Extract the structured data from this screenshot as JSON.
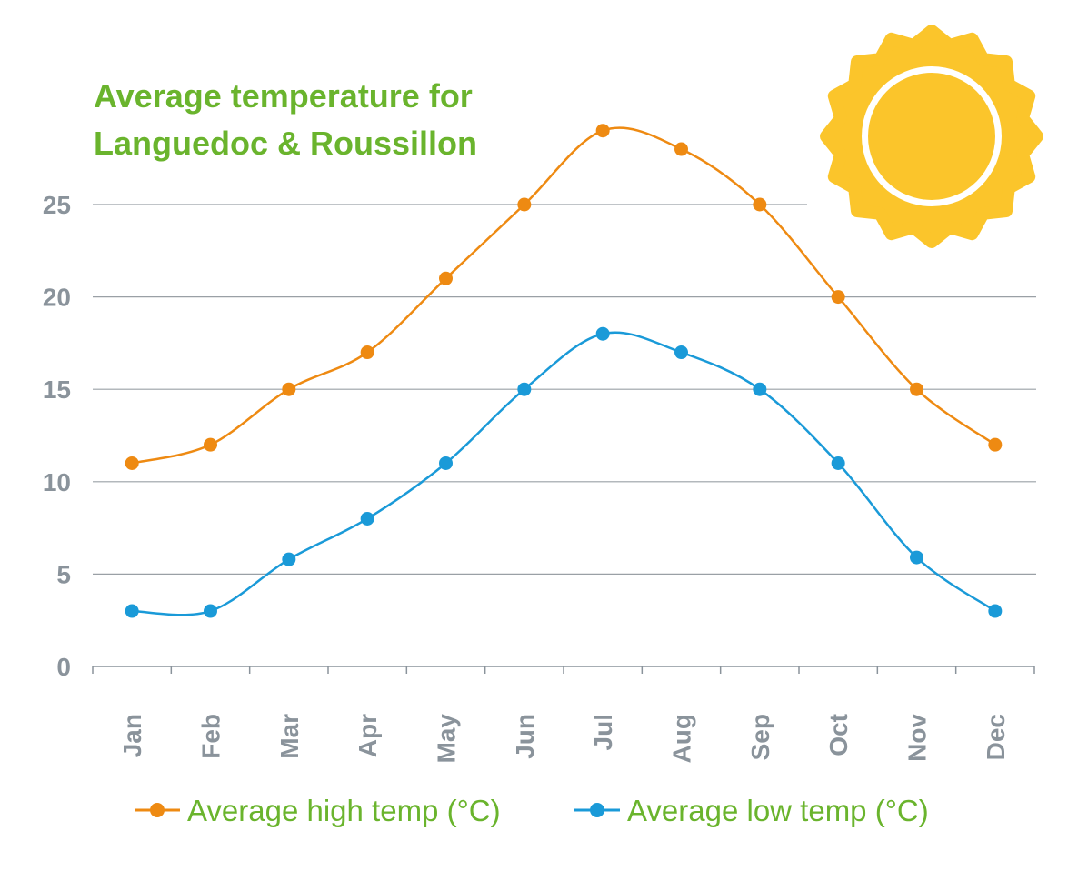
{
  "chart_data": {
    "type": "line",
    "title": "Average temperature for Languedoc & Roussillon",
    "title_lines": [
      "Average temperature for",
      "Languedoc & Roussillon"
    ],
    "categories": [
      "Jan",
      "Feb",
      "Mar",
      "Apr",
      "May",
      "Jun",
      "Jul",
      "Aug",
      "Sep",
      "Oct",
      "Nov",
      "Dec"
    ],
    "series": [
      {
        "name": "Average high temp (°C)",
        "color": "#ee8a12",
        "values": [
          11,
          12,
          15,
          17,
          21,
          25,
          29,
          28,
          25,
          20,
          15,
          12
        ]
      },
      {
        "name": "Average low temp (°C)",
        "color": "#1a9ad8",
        "values": [
          3,
          3,
          5.8,
          8,
          11,
          15,
          18,
          17,
          15,
          11,
          5.9,
          3
        ]
      }
    ],
    "yticks": [
      0,
      5,
      10,
      15,
      20,
      25
    ],
    "ylim": [
      0,
      25
    ],
    "xlabel": "",
    "ylabel": "",
    "grid": true,
    "legend_position": "bottom",
    "title_color": "#6ab42d",
    "axis_text_color": "#8a939b",
    "decoration": "sun-icon",
    "sun_color": "#fbc52b"
  }
}
